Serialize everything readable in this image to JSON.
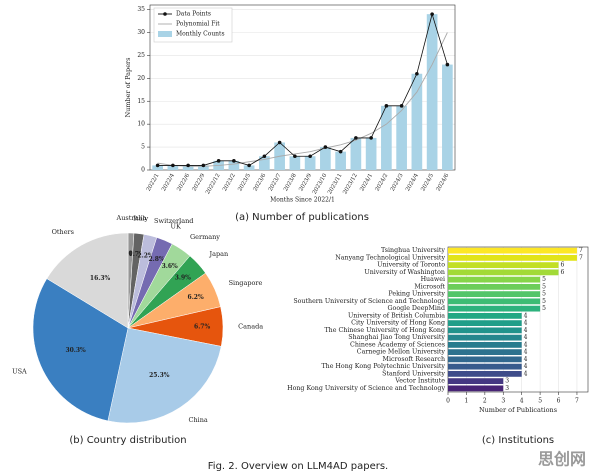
{
  "chart_data": [
    {
      "type": "bar-line",
      "caption": "(a) Number of publications",
      "y_label": "Number of Papers",
      "x_label": "Months Since 2022/1",
      "categories": [
        "2022/1",
        "2022/4",
        "2022/6",
        "2022/9",
        "2022/12",
        "2023/2",
        "2023/5",
        "2023/6",
        "2023/7",
        "2023/8",
        "2023/9",
        "2023/10",
        "2023/11",
        "2023/12",
        "2024/1",
        "2024/2",
        "2024/3",
        "2024/4",
        "2024/5",
        "2024/6"
      ],
      "series": [
        {
          "name": "Monthly Counts",
          "style": "bar",
          "color": "#a9d3e6",
          "values": [
            1,
            1,
            1,
            1,
            2,
            2,
            1,
            3,
            6,
            3,
            3,
            5,
            4,
            7,
            7,
            14,
            14,
            21,
            34,
            23
          ]
        },
        {
          "name": "Polynomial Fit",
          "style": "line",
          "color": "#aaaaaa",
          "values": [
            1.5,
            1,
            0.8,
            0.8,
            1,
            1.3,
            1.8,
            2.3,
            3,
            3.5,
            4,
            4.8,
            5.5,
            6.5,
            8,
            10,
            13,
            17,
            23,
            30
          ]
        },
        {
          "name": "Data Points",
          "style": "line-marker",
          "color": "#111111",
          "values": [
            1,
            1,
            1,
            1,
            2,
            2,
            1,
            3,
            6,
            3,
            3,
            5,
            4,
            7,
            7,
            14,
            14,
            21,
            34,
            23
          ]
        }
      ],
      "legend_order": [
        "Data Points",
        "Polynomial Fit",
        "Monthly Counts"
      ],
      "ylim": [
        0,
        36
      ],
      "yticks": [
        0,
        5,
        10,
        15,
        20,
        25,
        30,
        35
      ],
      "grid": true
    },
    {
      "type": "pie",
      "caption": "(b) Country distribution",
      "categories": [
        "Australia",
        "Italy",
        "Switzerland",
        "UK",
        "Germany",
        "Japan",
        "Singapore",
        "Canada",
        "China",
        "USA",
        "Others"
      ],
      "values": [
        1.0,
        1.7,
        2.2,
        2.8,
        3.6,
        3.9,
        6.2,
        6.7,
        25.3,
        30.3,
        16.3
      ],
      "value_labels": [
        "1.0%",
        "1.7%",
        "2.2%",
        "2.8%",
        "3.6%",
        "3.9%",
        "6.2%",
        "6.7%",
        "25.3%",
        "30.3%",
        "16.3%"
      ],
      "colors": [
        "#969696",
        "#636363",
        "#bcbddc",
        "#756bb1",
        "#a1d99b",
        "#31a354",
        "#fdae6b",
        "#e6550d",
        "#a8cbe8",
        "#3a7fc1",
        "#d9d9d9"
      ]
    },
    {
      "type": "hbar",
      "caption": "(c) Institutions",
      "x_label": "Number of Publications",
      "categories": [
        "Tsinghua University",
        "Nanyang Technological University",
        "University of Toronto",
        "University of Washington",
        "Huawei",
        "Microsoft",
        "Peking University",
        "Southern University of Science and Technology",
        "Google DeepMind",
        "University of British Columbia",
        "City University of Hong Kong",
        "The Chinese University of Hong Kong",
        "Shanghai Jiao Tong University",
        "Chinese Academy of Sciences",
        "Carnegie Mellon University",
        "Microsoft Research",
        "The Hong Kong Polytechnic University",
        "Stanford University",
        "Vector Institute",
        "Hong Kong University of Science and Technology"
      ],
      "values": [
        7,
        7,
        6,
        6,
        5,
        5,
        5,
        5,
        5,
        4,
        4,
        4,
        4,
        4,
        4,
        4,
        4,
        4,
        3,
        3
      ],
      "colors": [
        "#fde725",
        "#e2e418",
        "#c2df23",
        "#a2da37",
        "#86d549",
        "#6ccd5a",
        "#52c569",
        "#3dbc74",
        "#2db27d",
        "#22a884",
        "#1f9e89",
        "#20938c",
        "#24878e",
        "#287c8e",
        "#2c728e",
        "#31688e",
        "#375b8d",
        "#3e4c8a",
        "#453882",
        "#482475"
      ],
      "xlim": [
        0,
        7.6
      ],
      "xticks": [
        0,
        1,
        2,
        3,
        4,
        5,
        6,
        7
      ],
      "grid": true
    }
  ],
  "caption": "Fig. 2. Overview on LLM4AD papers.",
  "watermark": "思创网"
}
